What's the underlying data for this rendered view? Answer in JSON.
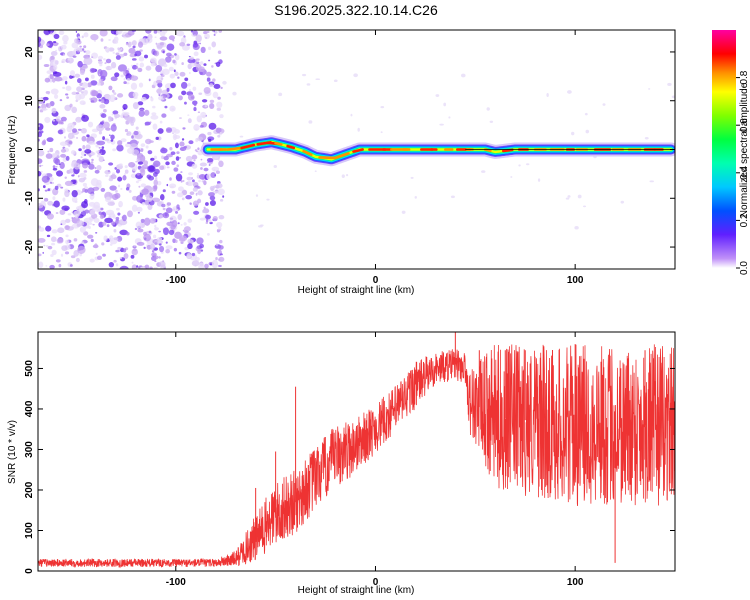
{
  "title": "S196.2025.322.10.14.C26",
  "chart_data": [
    {
      "type": "heatmap",
      "name": "spectrogram",
      "title": "S196.2025.322.10.14.C26",
      "xlabel": "Height of straight line (km)",
      "ylabel": "Frequency (Hz)",
      "xlim": [
        -169,
        150
      ],
      "ylim": [
        -24.5,
        24.5
      ],
      "x_ticks": [
        -100,
        0,
        100
      ],
      "y_ticks": [
        -20,
        -10,
        0,
        10,
        20
      ],
      "noise_region_x": [
        -169,
        -77
      ],
      "ridge": {
        "x_start": -84,
        "x_end": 148,
        "frequency_profile": [
          [
            -84,
            0
          ],
          [
            -70,
            0
          ],
          [
            -60,
            1
          ],
          [
            -52,
            1.5
          ],
          [
            -42,
            0.5
          ],
          [
            -35,
            -0.5
          ],
          [
            -30,
            -1.5
          ],
          [
            -22,
            -2
          ],
          [
            -15,
            -1
          ],
          [
            -8,
            0
          ],
          [
            0,
            0
          ],
          [
            15,
            0
          ],
          [
            40,
            0
          ],
          [
            55,
            0
          ],
          [
            60,
            -0.5
          ],
          [
            70,
            0
          ],
          [
            100,
            0
          ],
          [
            148,
            0
          ]
        ]
      },
      "colorbar": {
        "label": "Normalized spectral amplitude",
        "range": [
          0,
          1
        ],
        "ticks": [
          "0.0",
          "0.2",
          "0.4",
          "0.6",
          "0.8"
        ],
        "tick_values": [
          0,
          0.2,
          0.4,
          0.6,
          0.8
        ],
        "colors": [
          "#ffffff",
          "#b070f0",
          "#4000ff",
          "#0060ff",
          "#00e0ff",
          "#00ff60",
          "#80ff00",
          "#ffff00",
          "#ff8000",
          "#ff0000",
          "#ff00a0"
        ]
      }
    },
    {
      "type": "line",
      "name": "snr",
      "xlabel": "Height of straight line (km)",
      "ylabel": "SNR (10 * v/v)",
      "xlim": [
        -169,
        150
      ],
      "ylim": [
        0,
        590
      ],
      "x_ticks": [
        -100,
        0,
        100
      ],
      "y_ticks": [
        0,
        100,
        200,
        300,
        400,
        500
      ],
      "color": "#ee3333",
      "envelope": [
        {
          "x": -169,
          "base": 20,
          "spread": 10
        },
        {
          "x": -80,
          "base": 20,
          "spread": 10
        },
        {
          "x": -70,
          "base": 30,
          "spread": 20
        },
        {
          "x": -60,
          "base": 80,
          "spread": 60
        },
        {
          "x": -50,
          "base": 140,
          "spread": 80
        },
        {
          "x": -40,
          "base": 170,
          "spread": 80
        },
        {
          "x": -30,
          "base": 230,
          "spread": 80
        },
        {
          "x": -20,
          "base": 280,
          "spread": 80
        },
        {
          "x": -10,
          "base": 310,
          "spread": 70
        },
        {
          "x": 0,
          "base": 350,
          "spread": 60
        },
        {
          "x": 10,
          "base": 400,
          "spread": 60
        },
        {
          "x": 20,
          "base": 460,
          "spread": 60
        },
        {
          "x": 30,
          "base": 500,
          "spread": 40
        },
        {
          "x": 40,
          "base": 510,
          "spread": 40
        },
        {
          "x": 45,
          "base": 500,
          "spread": 40
        },
        {
          "x": 47,
          "base": 420,
          "spread": 80
        },
        {
          "x": 60,
          "base": 380,
          "spread": 180
        },
        {
          "x": 100,
          "base": 360,
          "spread": 200
        },
        {
          "x": 150,
          "base": 360,
          "spread": 200
        }
      ],
      "spikes": [
        [
          -40,
          455
        ],
        [
          -50,
          295
        ],
        [
          -60,
          205
        ],
        [
          40,
          590
        ],
        [
          52,
          545
        ],
        [
          65,
          545
        ],
        [
          75,
          545
        ],
        [
          100,
          560
        ],
        [
          120,
          20
        ],
        [
          135,
          545
        ]
      ]
    }
  ]
}
